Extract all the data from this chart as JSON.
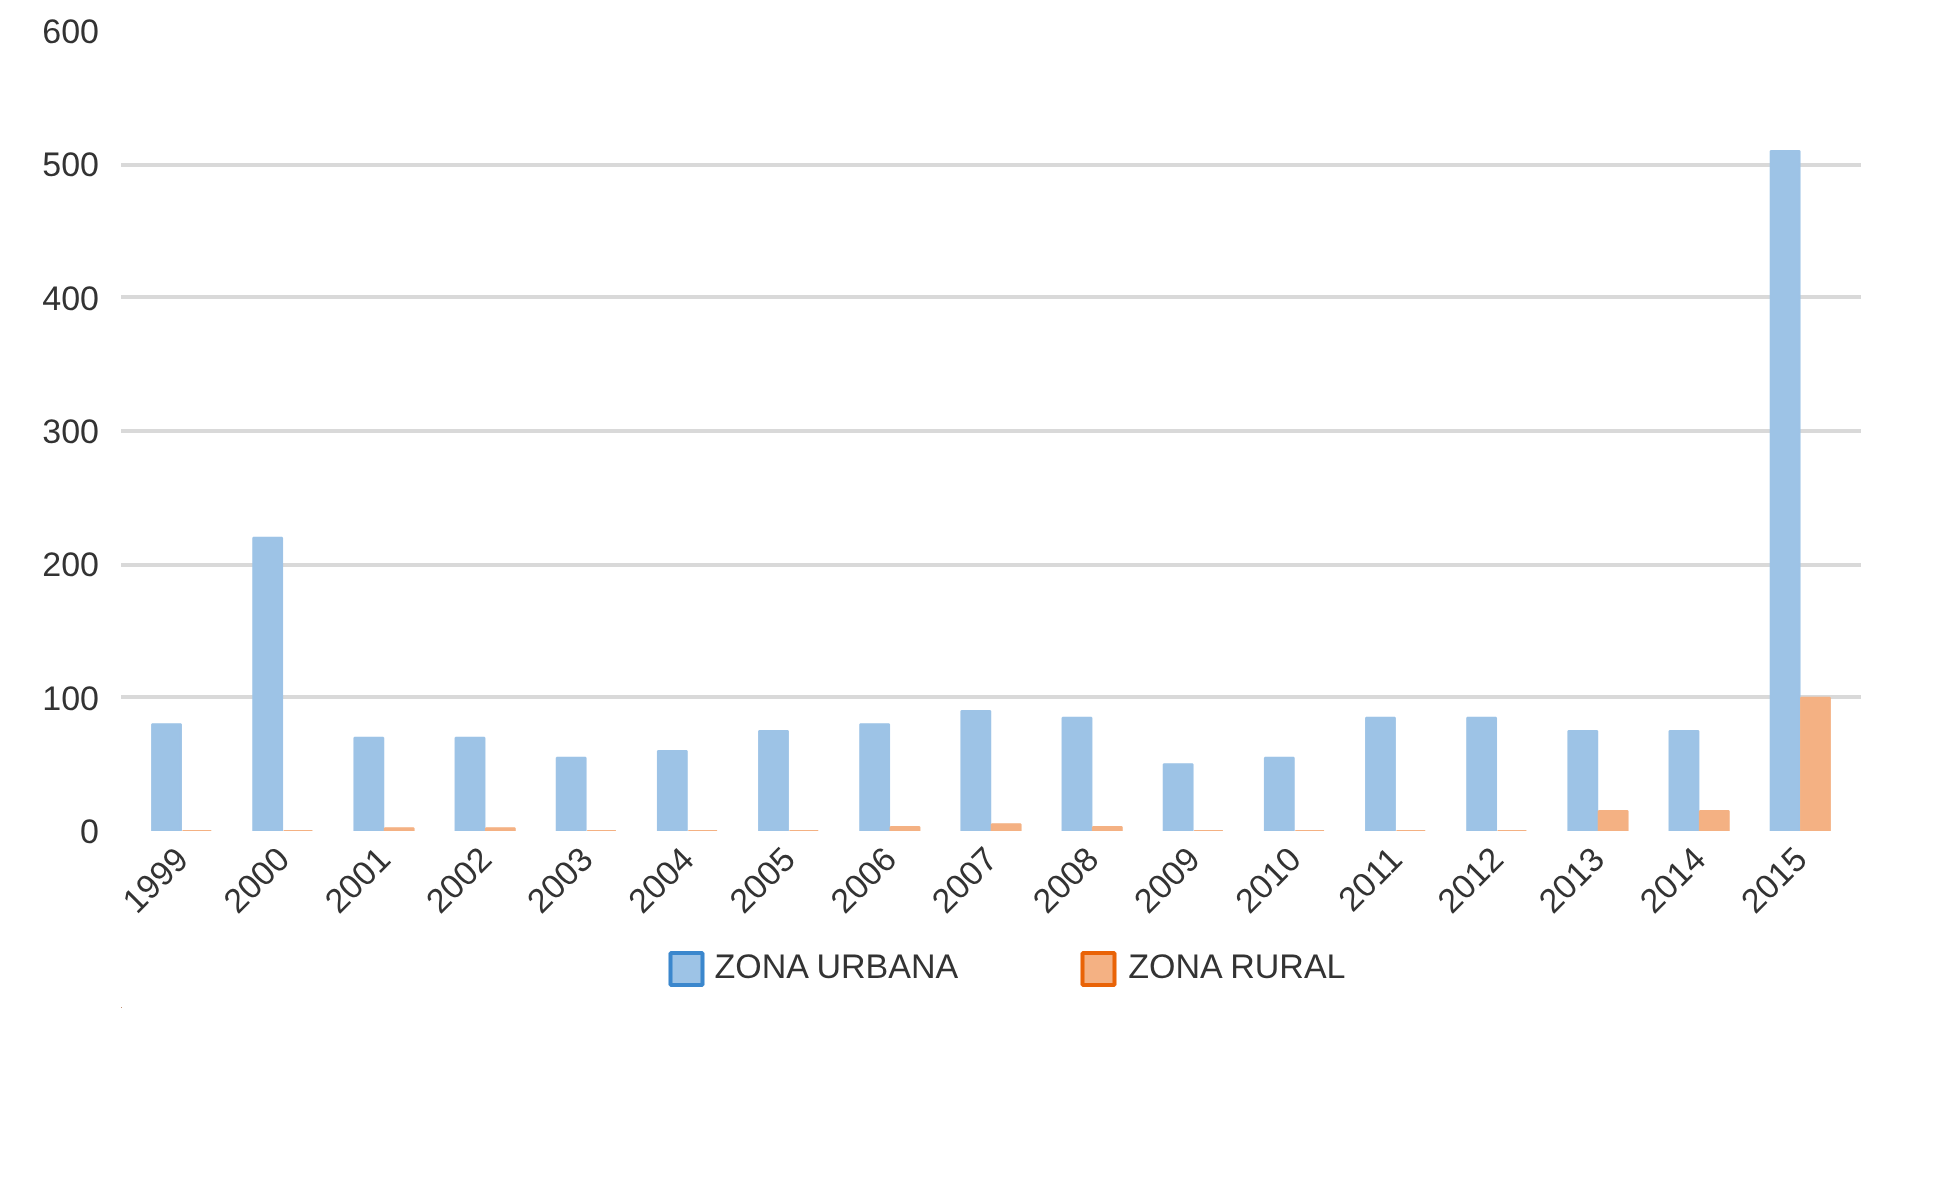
{
  "chart_data": {
    "type": "bar",
    "categories": [
      "1999",
      "2000",
      "2001",
      "2002",
      "2003",
      "2004",
      "2005",
      "2006",
      "2007",
      "2008",
      "2009",
      "2010",
      "2011",
      "2012",
      "2013",
      "2014",
      "2015"
    ],
    "series": [
      {
        "name": "ZONA URBANA",
        "color": "#9dc3e6",
        "values": [
          80,
          220,
          70,
          70,
          55,
          60,
          75,
          80,
          90,
          85,
          50,
          55,
          85,
          85,
          75,
          75,
          510
        ]
      },
      {
        "name": "ZONA RURAL",
        "color": "#f4b183",
        "values": [
          0,
          0,
          2,
          2,
          0,
          0,
          0,
          3,
          5,
          3,
          0,
          0,
          0,
          0,
          15,
          15,
          100
        ]
      }
    ],
    "ylim": [
      0,
      600
    ],
    "yticks": [
      0,
      100,
      200,
      300,
      400,
      500,
      600
    ],
    "grid": "y",
    "legend": "bottom"
  }
}
